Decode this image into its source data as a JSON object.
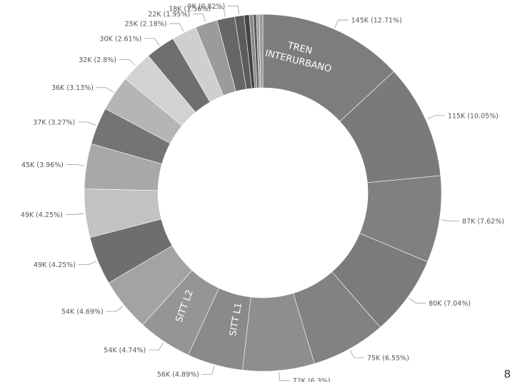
{
  "chart_data": {
    "type": "pie",
    "donut": true,
    "title": "",
    "slices": [
      {
        "label": "145K (12.71%)",
        "value": 145,
        "percent": 12.71,
        "color": "#7d7d7d"
      },
      {
        "label": "115K (10.05%)",
        "value": 115,
        "percent": 10.05,
        "color": "#7a7a7a"
      },
      {
        "label": "87K (7.62%)",
        "value": 87,
        "percent": 7.62,
        "color": "#808080"
      },
      {
        "label": "80K (7.04%)",
        "value": 80,
        "percent": 7.04,
        "color": "#7b7b7b"
      },
      {
        "label": "75K (6.55%)",
        "value": 75,
        "percent": 6.55,
        "color": "#828282"
      },
      {
        "label": "72K (6.3%)",
        "value": 72,
        "percent": 6.3,
        "color": "#8e8e8e"
      },
      {
        "label": "56K (4.89%)",
        "value": 56,
        "percent": 4.89,
        "color": "#8a8a8a"
      },
      {
        "label": "54K (4.74%)",
        "value": 54,
        "percent": 4.74,
        "color": "#959595"
      },
      {
        "label": "54K (4.69%)",
        "value": 54,
        "percent": 4.69,
        "color": "#a3a3a3"
      },
      {
        "label": "49K (4.25%)",
        "value": 49,
        "percent": 4.25,
        "color": "#6e6e6e"
      },
      {
        "label": "49K (4.25%)",
        "value": 49,
        "percent": 4.25,
        "color": "#c2c2c2"
      },
      {
        "label": "45K (3.96%)",
        "value": 45,
        "percent": 3.96,
        "color": "#a8a8a8"
      },
      {
        "label": "37K (3.27%)",
        "value": 37,
        "percent": 3.27,
        "color": "#747474"
      },
      {
        "label": "36K (3.13%)",
        "value": 36,
        "percent": 3.13,
        "color": "#b5b5b5"
      },
      {
        "label": "32K (2.8%)",
        "value": 32,
        "percent": 2.8,
        "color": "#d2d2d2"
      },
      {
        "label": "30K (2.61%)",
        "value": 30,
        "percent": 2.61,
        "color": "#6f6f6f"
      },
      {
        "label": "25K (2.18%)",
        "value": 25,
        "percent": 2.18,
        "color": "#cfcfcf"
      },
      {
        "label": "22K (1.95%)",
        "value": 22,
        "percent": 1.95,
        "color": "#9b9b9b"
      },
      {
        "label": "18K (1.56%)",
        "value": 18,
        "percent": 1.56,
        "color": "#666666"
      },
      {
        "label": "9K (0.82%)",
        "value": 9,
        "percent": 0.82,
        "color": "#5c5c5c"
      },
      {
        "label": "",
        "value": 5,
        "percent": 0.45,
        "color": "#444444"
      },
      {
        "label": "",
        "value": 4,
        "percent": 0.35,
        "color": "#8c8c8c"
      },
      {
        "label": "",
        "value": 3,
        "percent": 0.27,
        "color": "#5a5a5a"
      },
      {
        "label": "",
        "value": 3,
        "percent": 0.25,
        "color": "#a0a0a0"
      },
      {
        "label": "",
        "value": 4,
        "percent": 0.31,
        "color": "#9a9a9a"
      }
    ],
    "slice_annotations": [
      "TREN INTERURBANO",
      "SITT L1",
      "SITT L2"
    ]
  },
  "page_marker": "8"
}
